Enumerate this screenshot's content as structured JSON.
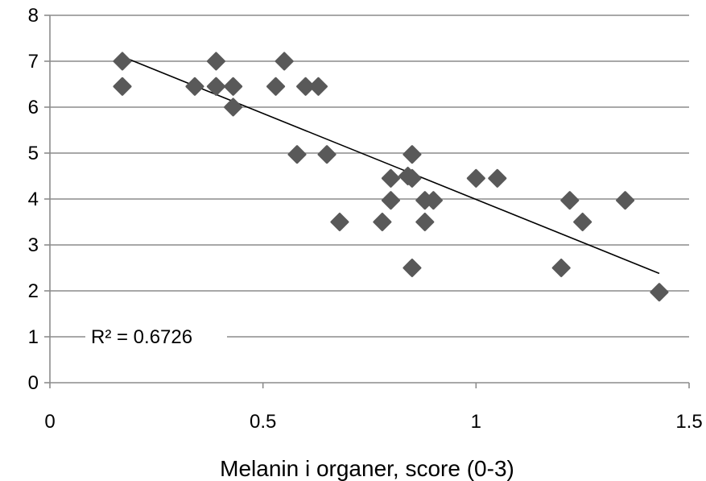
{
  "chart_data": {
    "type": "scatter",
    "title": "",
    "xlabel": "Melanin i organer, score (0-3)",
    "ylabel": "",
    "xlim": [
      0,
      1.5
    ],
    "ylim": [
      0,
      8
    ],
    "x_ticks": [
      "0",
      "0.5",
      "1",
      "1.5"
    ],
    "y_ticks": [
      "0",
      "1",
      "2",
      "3",
      "4",
      "5",
      "6",
      "7",
      "8"
    ],
    "grid": "horizontal",
    "annotation": "R² = 0.6726",
    "colors": {
      "marker": "#595959",
      "trendline": "#000000",
      "grid": "#8c8c8c"
    },
    "trendline": {
      "x": [
        0.17,
        1.43
      ],
      "y": [
        7.1,
        2.38
      ]
    },
    "series": [
      {
        "x": [
          0.17,
          0.17,
          0.34,
          0.39,
          0.39,
          0.39,
          0.43,
          0.43,
          0.53,
          0.55,
          0.58,
          0.6,
          0.63,
          0.65,
          0.68,
          0.78,
          0.8,
          0.8,
          0.84,
          0.85,
          0.85,
          0.85,
          0.88,
          0.88,
          0.9,
          1.0,
          1.05,
          1.2,
          1.22,
          1.25,
          1.35,
          1.43
        ],
        "y": [
          7.0,
          6.45,
          6.45,
          7.0,
          6.45,
          6.45,
          6.45,
          6.0,
          6.45,
          7.0,
          4.97,
          6.45,
          6.45,
          4.97,
          3.5,
          3.5,
          4.45,
          3.97,
          4.5,
          4.97,
          4.45,
          2.5,
          3.97,
          3.5,
          3.97,
          4.45,
          4.45,
          2.5,
          3.97,
          3.5,
          3.97,
          1.97
        ]
      }
    ]
  }
}
